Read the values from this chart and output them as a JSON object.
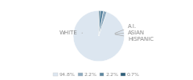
{
  "labels": [
    "WHITE",
    "A.I.",
    "ASIAN",
    "HISPANIC"
  ],
  "values": [
    94.8,
    2.2,
    2.2,
    0.7
  ],
  "colors": [
    "#dce6f0",
    "#8eaabf",
    "#5d87a1",
    "#2e5f7a"
  ],
  "legend_labels": [
    "94.8%",
    "2.2%",
    "2.2%",
    "0.7%"
  ],
  "startangle": 90,
  "bg_color": "#ffffff",
  "label_color": "#888888",
  "line_color": "#aaaaaa",
  "fontsize": 5.0,
  "legend_fontsize": 4.5
}
